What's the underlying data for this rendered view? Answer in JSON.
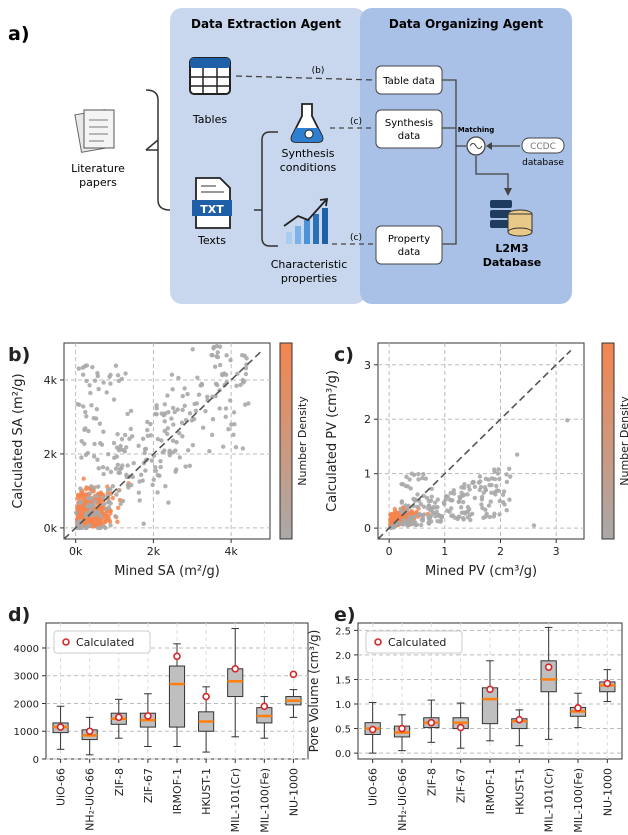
{
  "panel_a": {
    "label": "a)",
    "extraction_title": "Data Extraction Agent",
    "organizing_title": "Data Organizing Agent",
    "literature": "Literature\npapers",
    "tables": "Tables",
    "texts": "Texts",
    "txt_icon": "TXT",
    "synthesis_conditions": "Synthesis\nconditions",
    "characteristic_properties": "Characteristic\nproperties",
    "table_data": "Table data",
    "synthesis_data": "Synthesis\ndata",
    "property_data": "Property\ndata",
    "matching": "Matching",
    "ccdc": "CCDC",
    "database": "database",
    "l2m3": "L2M3\nDatabase",
    "edge_b": "(b)",
    "edge_c1": "(c)",
    "edge_c2": "(c)",
    "colors": {
      "extract_bg": "#c9d7ee",
      "organize_bg": "#a9c1e6",
      "accent": "#1f5fa8"
    }
  },
  "chart_data": [
    {
      "id": "b",
      "label": "b)",
      "type": "scatter",
      "xlabel": "Mined SA (m²/g)",
      "ylabel": "Calculated SA (m²/g)",
      "xlim": [
        -300,
        5000
      ],
      "ylim": [
        -300,
        5000
      ],
      "xticks": [
        0,
        2000,
        4000
      ],
      "xticklabels": [
        "0k",
        "2k",
        "4k"
      ],
      "yticks": [
        0,
        2000,
        4000
      ],
      "yticklabels": [
        "0k",
        "2k",
        "4k"
      ],
      "grid": true,
      "diagonal": true,
      "colorbar_label": "Number Density",
      "colors": {
        "low": "#a9a9a9",
        "high": "#f4854f"
      }
    },
    {
      "id": "c",
      "label": "c)",
      "type": "scatter",
      "xlabel": "Mined PV (cm³/g)",
      "ylabel": "Calculated PV (cm³/g)",
      "xlim": [
        -0.2,
        3.5
      ],
      "ylim": [
        -0.2,
        3.4
      ],
      "xticks": [
        0,
        1,
        2,
        3
      ],
      "xticklabels": [
        "0",
        "1",
        "2",
        "3"
      ],
      "yticks": [
        0,
        1,
        2,
        3
      ],
      "yticklabels": [
        "0",
        "1",
        "2",
        "3"
      ],
      "grid": true,
      "diagonal": true,
      "colorbar_label": "Number Density",
      "colors": {
        "low": "#a9a9a9",
        "high": "#f4854f"
      }
    },
    {
      "id": "d",
      "label": "d)",
      "type": "box",
      "ylabel": "",
      "ylim": [
        0,
        4900
      ],
      "yticks": [
        0,
        1000,
        2000,
        3000,
        4000
      ],
      "legend": "Calculated",
      "legend_position": "top-left",
      "categories": [
        "UiO-66",
        "NH₂-UiO-66",
        "ZIF-8",
        "ZIF-67",
        "IRMOF-1",
        "HKUST-1",
        "MIL-101(Cr)",
        "MIL-100(Fe)",
        "NU-1000"
      ],
      "boxes": [
        {
          "min": 350,
          "q1": 950,
          "median": 1150,
          "q3": 1300,
          "max": 1900,
          "calculated": 1150
        },
        {
          "min": 150,
          "q1": 700,
          "median": 850,
          "q3": 1050,
          "max": 1500,
          "calculated": 1000
        },
        {
          "min": 750,
          "q1": 1250,
          "median": 1450,
          "q3": 1650,
          "max": 2150,
          "calculated": 1500
        },
        {
          "min": 450,
          "q1": 1150,
          "median": 1400,
          "q3": 1650,
          "max": 2350,
          "calculated": 1550
        },
        {
          "min": 450,
          "q1": 1150,
          "median": 2700,
          "q3": 3350,
          "max": 4150,
          "calculated": 3700
        },
        {
          "min": 250,
          "q1": 1000,
          "median": 1350,
          "q3": 1700,
          "max": 2600,
          "calculated": 2250
        },
        {
          "min": 800,
          "q1": 2250,
          "median": 2800,
          "q3": 3250,
          "max": 4700,
          "calculated": 3250
        },
        {
          "min": 750,
          "q1": 1300,
          "median": 1550,
          "q3": 1850,
          "max": 2250,
          "calculated": 1900
        },
        {
          "min": 1500,
          "q1": 1950,
          "median": 2100,
          "q3": 2250,
          "max": 2500,
          "calculated": 3050
        }
      ],
      "colors": {
        "box": "#bfbfbf",
        "median": "#ff7f0e",
        "marker": "#d62728"
      }
    },
    {
      "id": "e",
      "label": "e)",
      "type": "box",
      "ylabel": "Pore Volume (cm³/g)",
      "ylim": [
        -0.12,
        2.65
      ],
      "yticks": [
        0.0,
        0.5,
        1.0,
        1.5,
        2.0,
        2.5
      ],
      "yticklabels": [
        "0.0",
        "0.5",
        "1.0",
        "1.5",
        "2.0",
        "2.5"
      ],
      "legend": "Calculated",
      "legend_position": "top-left",
      "categories": [
        "UiO-66",
        "NH₂-UiO-66",
        "ZIF-8",
        "ZIF-67",
        "IRMOF-1",
        "HKUST-1",
        "MIL-101(Cr)",
        "MIL-100(Fe)",
        "NU-1000"
      ],
      "boxes": [
        {
          "min": 0.0,
          "q1": 0.38,
          "median": 0.5,
          "q3": 0.62,
          "max": 1.03,
          "calculated": 0.48
        },
        {
          "min": 0.05,
          "q1": 0.33,
          "median": 0.42,
          "q3": 0.55,
          "max": 0.78,
          "calculated": 0.5
        },
        {
          "min": 0.22,
          "q1": 0.52,
          "median": 0.62,
          "q3": 0.72,
          "max": 1.08,
          "calculated": 0.62
        },
        {
          "min": 0.1,
          "q1": 0.5,
          "median": 0.62,
          "q3": 0.72,
          "max": 1.02,
          "calculated": 0.52
        },
        {
          "min": 0.25,
          "q1": 0.6,
          "median": 1.1,
          "q3": 1.33,
          "max": 1.88,
          "calculated": 1.3
        },
        {
          "min": 0.15,
          "q1": 0.5,
          "median": 0.65,
          "q3": 0.7,
          "max": 0.88,
          "calculated": 0.68
        },
        {
          "min": 0.28,
          "q1": 1.25,
          "median": 1.5,
          "q3": 1.88,
          "max": 2.56,
          "calculated": 1.75
        },
        {
          "min": 0.52,
          "q1": 0.75,
          "median": 0.85,
          "q3": 0.93,
          "max": 1.22,
          "calculated": 0.92
        },
        {
          "min": 1.05,
          "q1": 1.25,
          "median": 1.38,
          "q3": 1.45,
          "max": 1.7,
          "calculated": 1.42
        }
      ],
      "colors": {
        "box": "#bfbfbf",
        "median": "#ff7f0e",
        "marker": "#d62728"
      }
    }
  ]
}
